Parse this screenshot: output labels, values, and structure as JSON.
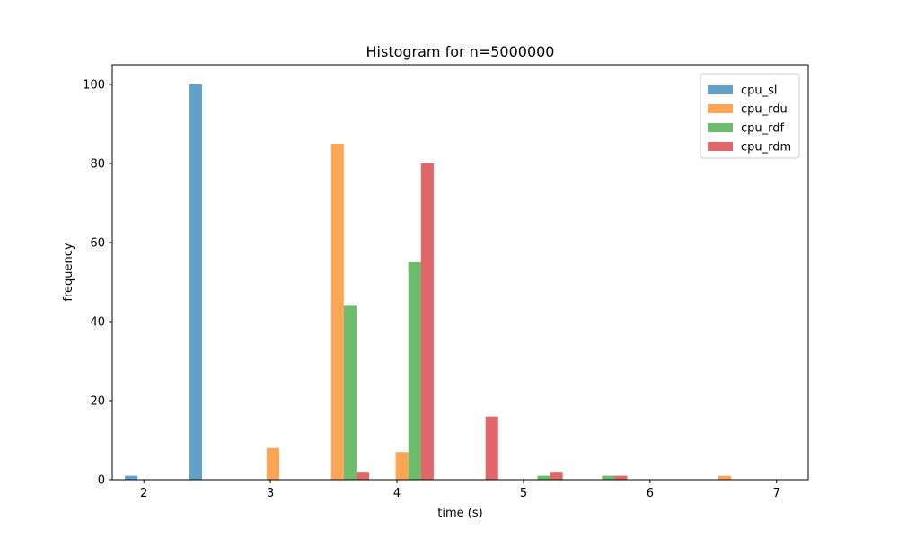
{
  "chart_data": {
    "type": "bar",
    "title": "Histogram for n=5000000",
    "xlabel": "time (s)",
    "ylabel": "frequency",
    "xlim": [
      1.75,
      7.25
    ],
    "ylim": [
      0,
      105
    ],
    "xticks": [
      2,
      3,
      4,
      5,
      6,
      7
    ],
    "yticks": [
      0,
      20,
      40,
      60,
      80,
      100
    ],
    "bin_centers": [
      2.05,
      2.56,
      3.07,
      3.58,
      4.09,
      4.6,
      5.11,
      5.62,
      6.13,
      6.64
    ],
    "bar_width": 0.1,
    "series": [
      {
        "name": "cpu_sl",
        "color": "#1f77b4",
        "values": [
          1,
          100,
          0,
          0,
          0,
          0,
          0,
          0,
          0,
          0
        ]
      },
      {
        "name": "cpu_rdu",
        "color": "#ff7f0e",
        "values": [
          0,
          0,
          8,
          85,
          7,
          0,
          0,
          0,
          0,
          1
        ]
      },
      {
        "name": "cpu_rdf",
        "color": "#2ca02c",
        "values": [
          0,
          0,
          0,
          44,
          55,
          0,
          1,
          1,
          0,
          0
        ]
      },
      {
        "name": "cpu_rdm",
        "color": "#d62728",
        "values": [
          0,
          0,
          0,
          2,
          80,
          16,
          2,
          1,
          0,
          0
        ]
      }
    ],
    "legend_location": "top-right"
  }
}
